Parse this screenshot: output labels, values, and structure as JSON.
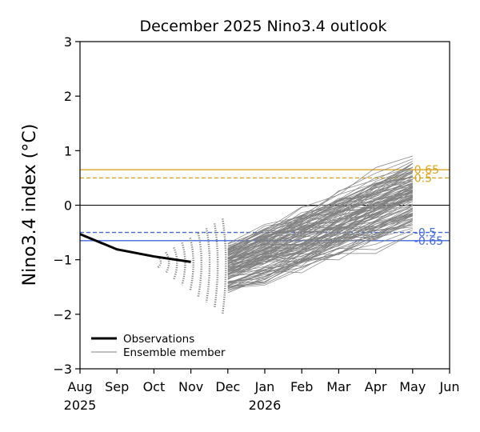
{
  "chart_data": {
    "type": "line",
    "title": "December 2025 Nino3.4 outlook",
    "xlabel": "",
    "ylabel": "Nino3.4 index (°C)",
    "ylim": [
      -3,
      3
    ],
    "yticks": [
      -3,
      -2,
      -1,
      0,
      1,
      2,
      3
    ],
    "ytick_labels": [
      "−3",
      "−2",
      "−1",
      "0",
      "1",
      "2",
      "3"
    ],
    "xlim": [
      0,
      10
    ],
    "xticks": [
      {
        "x": 0,
        "label": "Aug",
        "year": "2025"
      },
      {
        "x": 1,
        "label": "Sep",
        "year": ""
      },
      {
        "x": 2,
        "label": "Oct",
        "year": ""
      },
      {
        "x": 3,
        "label": "Nov",
        "year": ""
      },
      {
        "x": 4,
        "label": "Dec",
        "year": ""
      },
      {
        "x": 5,
        "label": "Jan",
        "year": "2026"
      },
      {
        "x": 6,
        "label": "Feb",
        "year": ""
      },
      {
        "x": 7,
        "label": "Mar",
        "year": ""
      },
      {
        "x": 8,
        "label": "Apr",
        "year": ""
      },
      {
        "x": 9,
        "label": "May",
        "year": ""
      },
      {
        "x": 10,
        "label": "Jun",
        "year": ""
      }
    ],
    "observations": {
      "name": "Observations",
      "color": "#000000",
      "x": [
        0,
        1,
        2,
        3
      ],
      "y": [
        -0.53,
        -0.81,
        -0.94,
        -1.04
      ]
    },
    "ensemble": {
      "name": "Ensemble member",
      "color": "#808080",
      "count": 120,
      "x": [
        4,
        5,
        6,
        7,
        8,
        9
      ],
      "start_range": [
        -1.55,
        -0.75
      ],
      "end_range": [
        -0.6,
        0.95
      ]
    },
    "thresholds": [
      {
        "value": 0.65,
        "label": "0.65",
        "color": "#DAA520",
        "style": "solid"
      },
      {
        "value": 0.5,
        "label": "0.5",
        "color": "#DAA520",
        "style": "dashed"
      },
      {
        "value": 0,
        "label": "",
        "color": "#000000",
        "style": "solid"
      },
      {
        "value": -0.5,
        "label": "-0.5",
        "color": "#4169E1",
        "style": "dashed"
      },
      {
        "value": -0.65,
        "label": "-0.65",
        "color": "#4169E1",
        "style": "solid"
      }
    ],
    "legend": {
      "position": "lower-left",
      "entries": [
        "Observations",
        "Ensemble member"
      ]
    }
  }
}
